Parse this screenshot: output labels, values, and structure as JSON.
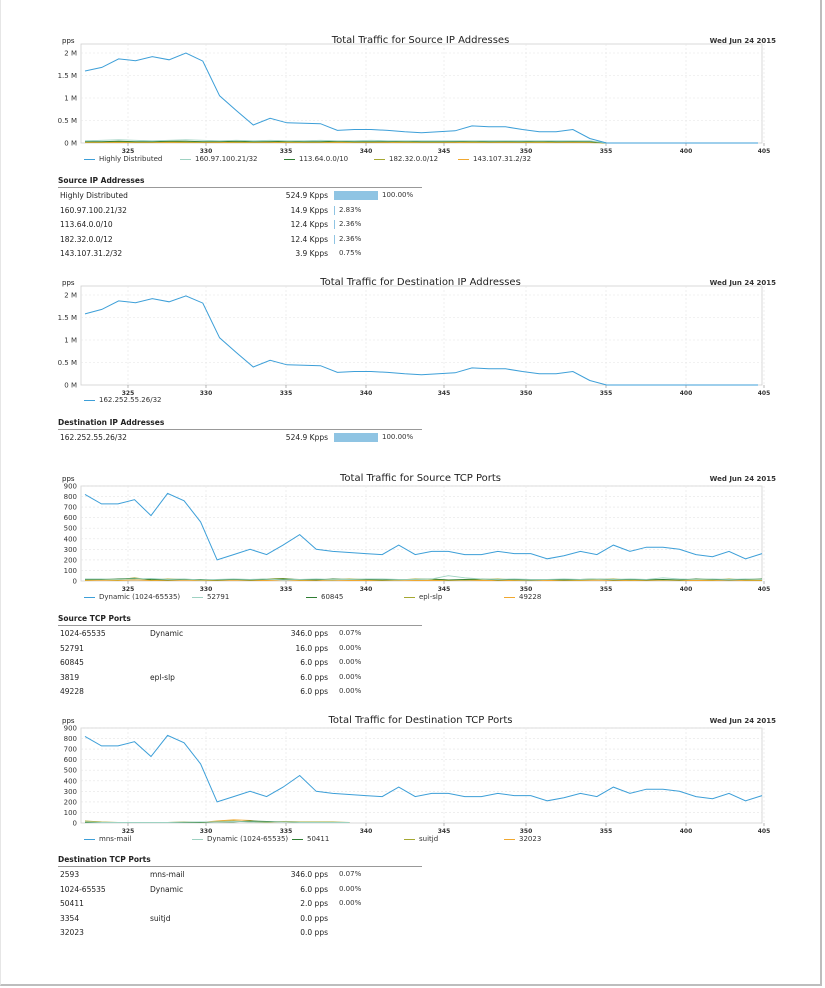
{
  "chart_data": [
    {
      "type": "line",
      "title": "Total Traffic for Source IP Addresses",
      "date": "Wed Jun 24 2015",
      "unit": "pps",
      "yticks": [
        "0 M",
        "0.5 M",
        "1 M",
        "1.5 M",
        "2 M"
      ],
      "ylim": [
        0,
        2.2
      ],
      "xticks": [
        "325",
        "330",
        "335",
        "340",
        "345",
        "350",
        "355",
        "400",
        "405"
      ],
      "grid": true,
      "legend_position": "bottom",
      "series": [
        {
          "name": "Highly Distributed",
          "color": "#3d9fd8",
          "values": [
            1.6,
            1.68,
            1.87,
            1.83,
            1.92,
            1.85,
            2.0,
            1.82,
            1.05,
            0.72,
            0.4,
            0.55,
            0.45,
            0.44,
            0.43,
            0.28,
            0.3,
            0.3,
            0.28,
            0.25,
            0.23,
            0.25,
            0.27,
            0.38,
            0.36,
            0.36,
            0.3,
            0.25,
            0.25,
            0.3,
            0.1,
            0.0,
            0.0,
            0.0,
            0.0,
            0.0,
            0.0,
            0.0,
            0.0,
            0.0,
            0.0
          ]
        },
        {
          "name": "160.97.100.21/32",
          "color": "#9ed2c2",
          "values": [
            0.05,
            0.06,
            0.07,
            0.06,
            0.05,
            0.06,
            0.07,
            0.06,
            0.05,
            0.06,
            0.05,
            0.06,
            0.05,
            0.05,
            0.06,
            0.05,
            0.05,
            0.06,
            0.05,
            0.05,
            0.05,
            0.05,
            0.05,
            0.05,
            0.05,
            0.05,
            0.05,
            0.05,
            0.05,
            0.05,
            0.05,
            0.0,
            0.0,
            0.0,
            0.0,
            0.0,
            0.0,
            0.0,
            0.0,
            0.0,
            0.0
          ]
        },
        {
          "name": "113.64.0.0/10",
          "color": "#2e7d32",
          "values": [
            0.03,
            0.03,
            0.04,
            0.03,
            0.03,
            0.04,
            0.04,
            0.03,
            0.03,
            0.04,
            0.03,
            0.03,
            0.04,
            0.03,
            0.03,
            0.04,
            0.03,
            0.03,
            0.03,
            0.04,
            0.03,
            0.03,
            0.03,
            0.04,
            0.03,
            0.03,
            0.03,
            0.04,
            0.03,
            0.03,
            0.03,
            0.0,
            0.0,
            0.0,
            0.0,
            0.0,
            0.0,
            0.0,
            0.0,
            0.0,
            0.0
          ]
        },
        {
          "name": "182.32.0.0/12",
          "color": "#a5a832",
          "values": [
            0.02,
            0.02,
            0.03,
            0.02,
            0.02,
            0.03,
            0.02,
            0.02,
            0.03,
            0.02,
            0.02,
            0.03,
            0.02,
            0.02,
            0.02,
            0.03,
            0.02,
            0.02,
            0.03,
            0.02,
            0.02,
            0.02,
            0.03,
            0.02,
            0.02,
            0.03,
            0.02,
            0.02,
            0.02,
            0.03,
            0.02,
            0.0,
            0.0,
            0.0,
            0.0,
            0.0,
            0.0,
            0.0,
            0.0,
            0.0,
            0.0
          ]
        },
        {
          "name": "143.107.31.2/32",
          "color": "#f0a830",
          "values": [
            0.01,
            0.01,
            0.01,
            0.01,
            0.01,
            0.01,
            0.01,
            0.01,
            0.01,
            0.01,
            0.01,
            0.01,
            0.01,
            0.01,
            0.01,
            0.01,
            0.01,
            0.01,
            0.01,
            0.01,
            0.01,
            0.01,
            0.01,
            0.01,
            0.01,
            0.01,
            0.01,
            0.01,
            0.01,
            0.01,
            0.01,
            0.0,
            0.0,
            0.0,
            0.0,
            0.0,
            0.0,
            0.0,
            0.0,
            0.0,
            0.0
          ]
        }
      ]
    },
    {
      "type": "line",
      "title": "Total Traffic for Destination IP Addresses",
      "date": "Wed Jun 24 2015",
      "unit": "pps",
      "yticks": [
        "0 M",
        "0.5 M",
        "1 M",
        "1.5 M",
        "2 M"
      ],
      "ylim": [
        0,
        2.2
      ],
      "xticks": [
        "325",
        "330",
        "335",
        "340",
        "345",
        "350",
        "355",
        "400",
        "405"
      ],
      "grid": true,
      "legend_position": "bottom",
      "series": [
        {
          "name": "162.252.55.26/32",
          "color": "#3d9fd8",
          "values": [
            1.58,
            1.68,
            1.87,
            1.83,
            1.92,
            1.85,
            1.98,
            1.82,
            1.05,
            0.72,
            0.4,
            0.55,
            0.45,
            0.44,
            0.43,
            0.28,
            0.3,
            0.3,
            0.28,
            0.25,
            0.23,
            0.25,
            0.27,
            0.38,
            0.36,
            0.36,
            0.3,
            0.25,
            0.25,
            0.3,
            0.1,
            0.0,
            0.0,
            0.0,
            0.0,
            0.0,
            0.0,
            0.0,
            0.0,
            0.0,
            0.0
          ]
        }
      ]
    },
    {
      "type": "line",
      "title": "Total Traffic for Source TCP Ports",
      "date": "Wed Jun 24 2015",
      "unit": "pps",
      "yticks": [
        "0",
        "100",
        "200",
        "300",
        "400",
        "500",
        "600",
        "700",
        "800",
        "900"
      ],
      "ylim": [
        0,
        900
      ],
      "xticks": [
        "325",
        "330",
        "335",
        "340",
        "345",
        "350",
        "355",
        "400",
        "405"
      ],
      "grid": true,
      "legend_position": "bottom",
      "series": [
        {
          "name": "Dynamic (1024-65535)",
          "color": "#3d9fd8",
          "values": [
            820,
            730,
            730,
            770,
            620,
            830,
            760,
            560,
            200,
            250,
            300,
            250,
            340,
            440,
            300,
            280,
            270,
            260,
            250,
            340,
            250,
            280,
            280,
            250,
            250,
            280,
            260,
            260,
            210,
            240,
            280,
            250,
            340,
            280,
            320,
            320,
            300,
            250,
            230,
            280,
            210,
            260
          ]
        },
        {
          "name": "52791",
          "color": "#9ed2c2",
          "values": [
            20,
            20,
            15,
            20,
            25,
            15,
            20,
            10,
            15,
            20,
            15,
            20,
            10,
            15,
            20,
            15,
            15,
            20,
            20,
            15,
            15,
            20,
            50,
            30,
            20,
            15,
            20,
            15,
            15,
            20,
            15,
            20,
            15,
            20,
            15,
            30,
            20,
            15,
            20,
            15,
            20,
            15
          ]
        },
        {
          "name": "60845",
          "color": "#2e7d32",
          "values": [
            15,
            15,
            20,
            25,
            15,
            10,
            15,
            15,
            10,
            15,
            10,
            15,
            20,
            15,
            10,
            20,
            15,
            15,
            10,
            15,
            15,
            20,
            10,
            15,
            20,
            10,
            15,
            10,
            15,
            10,
            15,
            20,
            10,
            15,
            10,
            15,
            10,
            20,
            15,
            10,
            15,
            20
          ]
        },
        {
          "name": "epl-slp",
          "color": "#a5a832",
          "values": [
            10,
            15,
            10,
            30,
            10,
            20,
            15,
            10,
            10,
            15,
            10,
            20,
            25,
            10,
            15,
            10,
            20,
            15,
            10,
            10,
            20,
            15,
            10,
            10,
            15,
            20,
            10,
            10,
            15,
            10,
            10,
            15,
            20,
            10,
            15,
            10,
            10,
            15,
            10,
            20,
            10,
            10
          ]
        },
        {
          "name": "49228",
          "color": "#f0a830",
          "values": [
            5,
            8,
            5,
            10,
            5,
            5,
            8,
            5,
            5,
            8,
            5,
            5,
            10,
            5,
            5,
            8,
            5,
            5,
            5,
            8,
            5,
            5,
            5,
            8,
            5,
            5,
            5,
            8,
            5,
            5,
            5,
            8,
            5,
            5,
            5,
            8,
            5,
            5,
            5,
            8,
            5,
            5
          ]
        }
      ]
    },
    {
      "type": "line",
      "title": "Total Traffic for Destination TCP Ports",
      "date": "Wed Jun 24 2015",
      "unit": "pps",
      "yticks": [
        "0",
        "100",
        "200",
        "300",
        "400",
        "500",
        "600",
        "700",
        "800",
        "900"
      ],
      "ylim": [
        0,
        900
      ],
      "xticks": [
        "325",
        "330",
        "335",
        "340",
        "345",
        "350",
        "355",
        "400",
        "405"
      ],
      "grid": true,
      "legend_position": "bottom",
      "series": [
        {
          "name": "mns-mail",
          "color": "#3d9fd8",
          "values": [
            820,
            730,
            730,
            770,
            630,
            830,
            760,
            560,
            200,
            250,
            300,
            250,
            340,
            450,
            300,
            280,
            270,
            260,
            250,
            340,
            250,
            280,
            280,
            250,
            250,
            280,
            260,
            260,
            210,
            240,
            280,
            250,
            340,
            280,
            320,
            320,
            300,
            250,
            230,
            280,
            210,
            260
          ]
        },
        {
          "name": "Dynamic (1024-65535)",
          "color": "#9ed2c2",
          "values": [
            10,
            5,
            5,
            5,
            5,
            5,
            8,
            10,
            10,
            15,
            10,
            8,
            10,
            5,
            5,
            5,
            5
          ]
        },
        {
          "name": "50411",
          "color": "#2e7d32",
          "values": [
            5,
            5,
            5,
            5,
            5,
            5,
            5,
            5,
            10,
            10,
            20,
            15,
            10,
            5,
            5,
            5,
            5
          ]
        },
        {
          "name": "suitjd",
          "color": "#a5a832",
          "values": [
            20,
            10,
            5,
            5,
            5,
            5,
            10,
            5,
            15,
            20,
            10,
            5,
            15,
            10,
            10,
            10,
            5
          ]
        },
        {
          "name": "32023",
          "color": "#f0a830",
          "values": [
            5,
            5,
            5,
            5,
            5,
            5,
            5,
            5,
            20,
            30,
            25,
            5,
            10,
            5,
            5,
            5,
            5
          ]
        }
      ]
    }
  ],
  "tables": [
    {
      "title": "Source IP Addresses",
      "rows": [
        {
          "name": "Highly Distributed",
          "alt": "",
          "value": "524.9 Kpps",
          "pct": "100.00%",
          "ratio": 1.0
        },
        {
          "name": "160.97.100.21/32",
          "alt": "",
          "value": "14.9 Kpps",
          "pct": "2.83%",
          "ratio": 0.0283
        },
        {
          "name": "113.64.0.0/10",
          "alt": "",
          "value": "12.4 Kpps",
          "pct": "2.36%",
          "ratio": 0.0236
        },
        {
          "name": "182.32.0.0/12",
          "alt": "",
          "value": "12.4 Kpps",
          "pct": "2.36%",
          "ratio": 0.0236
        },
        {
          "name": "143.107.31.2/32",
          "alt": "",
          "value": "3.9 Kpps",
          "pct": "0.75%",
          "ratio": 0.0075
        }
      ]
    },
    {
      "title": "Destination IP Addresses",
      "rows": [
        {
          "name": "162.252.55.26/32",
          "alt": "",
          "value": "524.9 Kpps",
          "pct": "100.00%",
          "ratio": 1.0
        }
      ]
    },
    {
      "title": "Source TCP Ports",
      "rows": [
        {
          "name": "1024-65535",
          "alt": "Dynamic",
          "value": "346.0 pps",
          "pct": "0.07%",
          "ratio": 0.0007
        },
        {
          "name": "52791",
          "alt": "",
          "value": "16.0 pps",
          "pct": "0.00%",
          "ratio": 0
        },
        {
          "name": "60845",
          "alt": "",
          "value": "6.0 pps",
          "pct": "0.00%",
          "ratio": 0
        },
        {
          "name": "3819",
          "alt": "epl-slp",
          "value": "6.0 pps",
          "pct": "0.00%",
          "ratio": 0
        },
        {
          "name": "49228",
          "alt": "",
          "value": "6.0 pps",
          "pct": "0.00%",
          "ratio": 0
        }
      ]
    },
    {
      "title": "Destination TCP Ports",
      "rows": [
        {
          "name": "2593",
          "alt": "mns-mail",
          "value": "346.0 pps",
          "pct": "0.07%",
          "ratio": 0.0007
        },
        {
          "name": "1024-65535",
          "alt": "Dynamic",
          "value": "6.0 pps",
          "pct": "0.00%",
          "ratio": 0
        },
        {
          "name": "50411",
          "alt": "",
          "value": "2.0 pps",
          "pct": "0.00%",
          "ratio": 0
        },
        {
          "name": "3354",
          "alt": "suitjd",
          "value": "0.0 pps",
          "pct": "",
          "ratio": 0
        },
        {
          "name": "32023",
          "alt": "",
          "value": "0.0 pps",
          "pct": "",
          "ratio": 0
        }
      ]
    }
  ]
}
